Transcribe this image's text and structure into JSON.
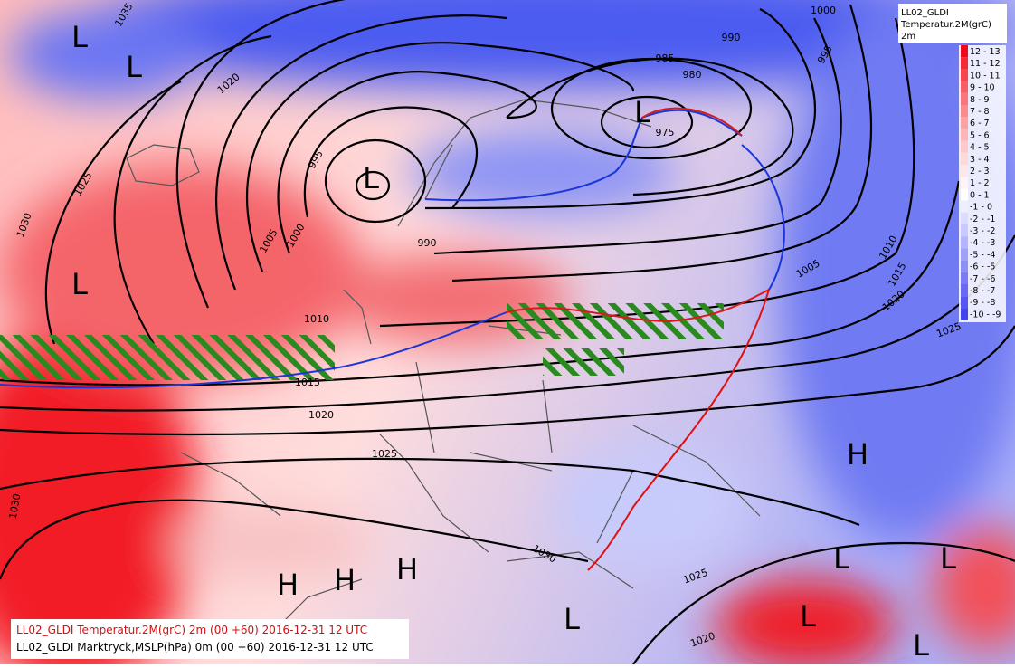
{
  "legend": {
    "title": [
      "LL02_GLDI",
      "Temperatur.2M(grC)",
      "2m"
    ],
    "bins": [
      {
        "label": "12 - 13",
        "color": "#f00a1e"
      },
      {
        "label": "11 - 12",
        "color": "#f52a35"
      },
      {
        "label": "10 - 11",
        "color": "#f7454d"
      },
      {
        "label": "9 - 10",
        "color": "#f85e63"
      },
      {
        "label": "8 - 9",
        "color": "#f9767a"
      },
      {
        "label": "7 - 8",
        "color": "#fa8c8f"
      },
      {
        "label": "6 - 7",
        "color": "#fba2a4"
      },
      {
        "label": "5 - 6",
        "color": "#fcb6b8"
      },
      {
        "label": "4 - 5",
        "color": "#fdc9ca"
      },
      {
        "label": "3 - 4",
        "color": "#fed9da"
      },
      {
        "label": "2 - 3",
        "color": "#fee7e8"
      },
      {
        "label": "1 - 2",
        "color": "#fff3f3"
      },
      {
        "label": "0 - 1",
        "color": "#ffffff"
      },
      {
        "label": "-1 - 0",
        "color": "#eeeeff"
      },
      {
        "label": "-2 - -1",
        "color": "#dcdcff"
      },
      {
        "label": "-3 - -2",
        "color": "#c9c9fd"
      },
      {
        "label": "-4 - -3",
        "color": "#b5b5fb"
      },
      {
        "label": "-5 - -4",
        "color": "#a1a1f9"
      },
      {
        "label": "-6 - -5",
        "color": "#8e8ef7"
      },
      {
        "label": "-7 - -6",
        "color": "#7b7bf5"
      },
      {
        "label": "-8 - -7",
        "color": "#6868f3"
      },
      {
        "label": "-9 - -8",
        "color": "#5656f0"
      },
      {
        "label": "-10 - -9",
        "color": "#4444ee"
      }
    ]
  },
  "isobar_labels": [
    "1035",
    "1020",
    "1025",
    "1030",
    "995",
    "1000",
    "1005",
    "990",
    "990",
    "985",
    "980",
    "975",
    "1000",
    "995",
    "1010",
    "1015",
    "1020",
    "1025",
    "1015",
    "1020",
    "1025",
    "1030",
    "1030",
    "1025",
    "1020",
    "1010",
    "1005"
  ],
  "pressure_centers": [
    "L",
    "L",
    "L",
    "L",
    "L",
    "H",
    "H",
    "H",
    "H",
    "L",
    "L",
    "L",
    "L",
    "L"
  ],
  "footer": {
    "lines": [
      "LL02_GLDI Temperatur.2M(grC)   2m (00 +60) 2016-12-31 12 UTC",
      "LL02_GLDI Marktryck,MSLP(hPa)   0m (00 +60) 2016-12-31 12 UTC"
    ]
  }
}
